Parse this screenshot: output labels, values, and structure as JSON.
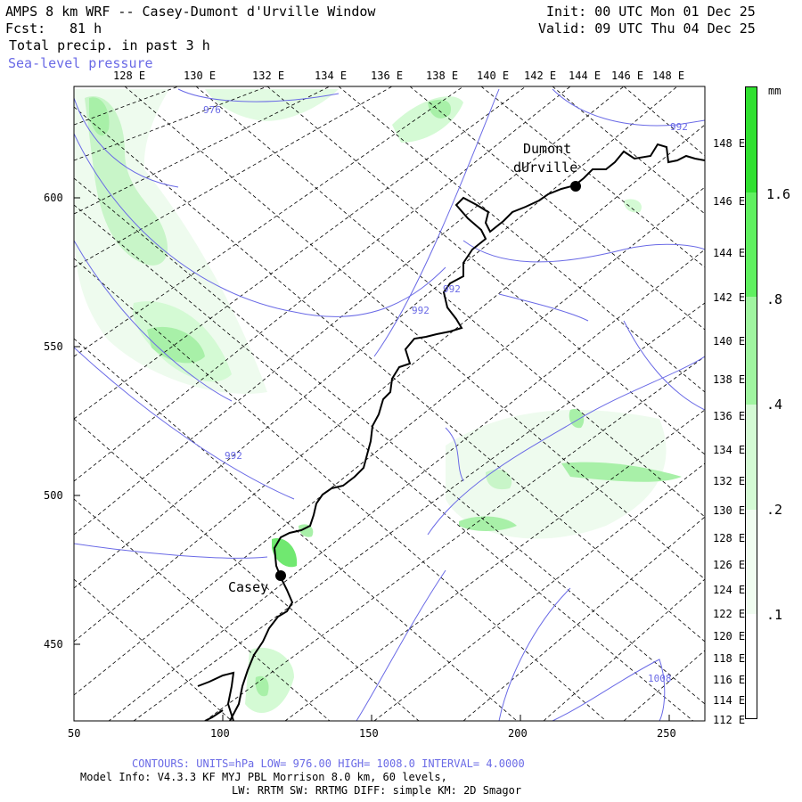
{
  "header": {
    "title": "AMPS 8 km WRF -- Casey-Dumont d'Urville Window",
    "init": "Init: 00 UTC Mon 01 Dec 25",
    "fcst_label": "Fcst:",
    "fcst_value": "81 h",
    "valid": "Valid: 09 UTC Thu 04 Dec 25",
    "field": "Total precip. in past 3 h",
    "overlay": "Sea-level pressure"
  },
  "axes": {
    "x_ticks": [
      "50",
      "100",
      "150",
      "200",
      "250"
    ],
    "y_ticks": [
      "600",
      "550",
      "500",
      "450"
    ],
    "top_lon_labels": [
      "128 E",
      "130 E",
      "132 E",
      "134 E",
      "136 E",
      "138 E",
      "140 E",
      "142 E",
      "144 E",
      "146 E",
      "148 E"
    ],
    "right_lon_labels": [
      "148 E",
      "146 E",
      "144 E",
      "142 E",
      "140 E",
      "138 E",
      "136 E",
      "134 E",
      "132 E",
      "130 E",
      "128 E",
      "126 E",
      "124 E",
      "122 E",
      "120 E",
      "118 E",
      "116 E",
      "114 E",
      "112 E"
    ]
  },
  "stations": [
    {
      "name": "Casey"
    },
    {
      "name": "Dumont",
      "name2": "dUrville"
    }
  ],
  "contour_labels": [
    "976",
    "992",
    "992",
    "992",
    "992",
    "1008"
  ],
  "colorbar": {
    "units": "mm",
    "labels": [
      "1.6",
      ".8",
      ".4",
      ".2",
      ".1"
    ],
    "colors": [
      "#30e030",
      "#60f060",
      "#a0f5a0",
      "#d4fad4",
      "#f0fcf0",
      "#ffffff"
    ]
  },
  "footer": {
    "contours": "CONTOURS:  UNITS=hPa  LOW=  976.00     HIGH=  1008.0     INTERVAL=   4.0000",
    "model_info": "Model Info: V4.3.3   KF      MYJ PBL  Morrison          8.0 km,  60 levels,",
    "physics": "LW: RRTM SW: RRTMG   DIFF: simple KM: 2D Smagor"
  }
}
